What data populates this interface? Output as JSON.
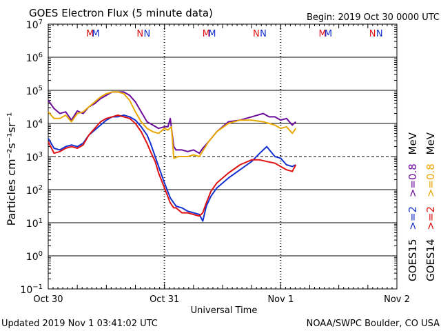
{
  "header": {
    "title": "GOES Electron Flux (5 minute data)",
    "begin": "Begin: 2019 Oct 30 0000 UTC"
  },
  "footer": {
    "updated": "Updated 2019 Nov  1 03:41:02 UTC",
    "credit": "NOAA/SWPC Boulder, CO USA"
  },
  "colors": {
    "goes15_2": "#1030d0",
    "goes14_2": "#e01010",
    "goes15_08": "#6a0a9a",
    "goes14_08": "#e8a800",
    "m_red": "#e01010",
    "m_blue": "#1030d0"
  },
  "chart_data": {
    "type": "line",
    "title": "GOES Electron Flux (5 minute data)",
    "xlabel": "Universal Time",
    "ylabel": "Particles cm⁻²s⁻¹sr⁻¹",
    "y_scale": "log",
    "ylim_exp": [
      -1,
      7
    ],
    "ytick_labels": [
      {
        "exp": 7,
        "label": "10",
        "sup": "7"
      },
      {
        "exp": 6,
        "label": "10",
        "sup": "6"
      },
      {
        "exp": 5,
        "label": "10",
        "sup": "5"
      },
      {
        "exp": 4,
        "label": "10",
        "sup": "4"
      },
      {
        "exp": 3,
        "label": "10",
        "sup": "3"
      },
      {
        "exp": 2,
        "label": "10",
        "sup": "2"
      },
      {
        "exp": 1,
        "label": "10",
        "sup": "1"
      },
      {
        "exp": 0,
        "label": "10",
        "sup": "0"
      },
      {
        "exp": -1,
        "label": "10",
        "sup": "−1"
      }
    ],
    "xlim_days": [
      0,
      3
    ],
    "x_tick_labels": [
      {
        "day": 0,
        "label": "Oct 30"
      },
      {
        "day": 1,
        "label": "Oct 31"
      },
      {
        "day": 2,
        "label": "Nov 1"
      },
      {
        "day": 3,
        "label": "Nov 2"
      }
    ],
    "threshold_exp": 3,
    "gridlines_exp": [
      6,
      5,
      4,
      2,
      1,
      0
    ],
    "day_dividers": [
      1,
      2
    ],
    "markers": [
      {
        "day": 0.36,
        "label": "M",
        "which": "red"
      },
      {
        "day": 0.41,
        "label": "M",
        "which": "blue"
      },
      {
        "day": 0.79,
        "label": "N",
        "which": "red"
      },
      {
        "day": 0.85,
        "label": "N",
        "which": "blue"
      },
      {
        "day": 1.36,
        "label": "M",
        "which": "red"
      },
      {
        "day": 1.41,
        "label": "M",
        "which": "blue"
      },
      {
        "day": 1.79,
        "label": "N",
        "which": "red"
      },
      {
        "day": 1.85,
        "label": "N",
        "which": "blue"
      },
      {
        "day": 2.36,
        "label": "M",
        "which": "red"
      },
      {
        "day": 2.41,
        "label": "M",
        "which": "blue"
      },
      {
        "day": 2.79,
        "label": "N",
        "which": "red"
      },
      {
        "day": 2.85,
        "label": "N",
        "which": "blue"
      }
    ],
    "legend": {
      "goes15": "GOES15",
      "goes14": "GOES14",
      "ge2": ">=2",
      "ge08": ">=0.8",
      "mev": "MeV"
    },
    "series": [
      {
        "name": "GOES15 >=0.8 MeV",
        "color_key": "goes15_08",
        "days": [
          0,
          0.05,
          0.1,
          0.15,
          0.2,
          0.25,
          0.3,
          0.35,
          0.4,
          0.45,
          0.5,
          0.55,
          0.6,
          0.65,
          0.7,
          0.75,
          0.8,
          0.85,
          0.9,
          0.95,
          1.0,
          1.03,
          1.05,
          1.08,
          1.1,
          1.15,
          1.2,
          1.25,
          1.3,
          1.33,
          1.38,
          1.45,
          1.55,
          1.65,
          1.75,
          1.85,
          1.9,
          1.95,
          2.0,
          2.05,
          2.1,
          2.13
        ],
        "log_values": [
          4.7,
          4.45,
          4.3,
          4.35,
          4.1,
          4.38,
          4.3,
          4.5,
          4.6,
          4.75,
          4.85,
          4.95,
          4.95,
          4.95,
          4.85,
          4.65,
          4.35,
          4.05,
          3.95,
          3.85,
          3.9,
          3.9,
          4.15,
          3.3,
          3.2,
          3.2,
          3.15,
          3.2,
          3.1,
          3.25,
          3.45,
          3.75,
          4.05,
          4.1,
          4.2,
          4.3,
          4.2,
          4.2,
          4.1,
          4.15,
          3.95,
          4.05
        ]
      },
      {
        "name": "GOES14 >=0.8 MeV",
        "color_key": "goes14_08",
        "days": [
          0,
          0.05,
          0.1,
          0.15,
          0.2,
          0.25,
          0.3,
          0.35,
          0.4,
          0.45,
          0.5,
          0.55,
          0.6,
          0.65,
          0.7,
          0.75,
          0.8,
          0.85,
          0.9,
          0.95,
          1.0,
          1.03,
          1.06,
          1.08,
          1.12,
          1.2,
          1.25,
          1.3,
          1.38,
          1.45,
          1.55,
          1.65,
          1.75,
          1.85,
          1.9,
          1.95,
          2.0,
          2.05,
          2.1,
          2.13
        ],
        "log_values": [
          4.35,
          4.15,
          4.15,
          4.25,
          4.05,
          4.3,
          4.35,
          4.5,
          4.65,
          4.8,
          4.9,
          4.95,
          4.95,
          4.9,
          4.7,
          4.35,
          4.05,
          3.85,
          3.75,
          3.7,
          3.85,
          3.8,
          3.9,
          2.95,
          3.0,
          3.0,
          3.05,
          3.0,
          3.45,
          3.75,
          4.0,
          4.1,
          4.1,
          4.05,
          4.0,
          3.95,
          3.85,
          3.9,
          3.7,
          3.85
        ]
      },
      {
        "name": "GOES15 >=2 MeV",
        "color_key": "goes15_2",
        "days": [
          0,
          0.05,
          0.1,
          0.15,
          0.2,
          0.25,
          0.3,
          0.35,
          0.4,
          0.45,
          0.5,
          0.55,
          0.6,
          0.65,
          0.7,
          0.75,
          0.8,
          0.85,
          0.88,
          0.92,
          0.95,
          1.0,
          1.05,
          1.08,
          1.1,
          1.15,
          1.2,
          1.25,
          1.3,
          1.33,
          1.36,
          1.4,
          1.45,
          1.55,
          1.65,
          1.75,
          1.82,
          1.88,
          1.95,
          2.0,
          2.05,
          2.1,
          2.13
        ],
        "log_values": [
          3.55,
          3.25,
          3.2,
          3.3,
          3.35,
          3.3,
          3.4,
          3.65,
          3.8,
          3.95,
          4.1,
          4.2,
          4.2,
          4.25,
          4.2,
          4.1,
          3.9,
          3.65,
          3.4,
          3.0,
          2.7,
          2.2,
          1.75,
          1.6,
          1.5,
          1.45,
          1.35,
          1.3,
          1.25,
          1.05,
          1.5,
          1.8,
          2.05,
          2.35,
          2.6,
          2.85,
          3.1,
          3.3,
          3.0,
          2.95,
          2.75,
          2.7,
          2.75
        ]
      },
      {
        "name": "GOES14 >=2 MeV",
        "color_key": "goes14_2",
        "days": [
          0,
          0.05,
          0.1,
          0.15,
          0.2,
          0.25,
          0.3,
          0.35,
          0.4,
          0.45,
          0.5,
          0.55,
          0.6,
          0.65,
          0.7,
          0.75,
          0.8,
          0.85,
          0.88,
          0.92,
          0.95,
          1.0,
          1.05,
          1.08,
          1.1,
          1.15,
          1.2,
          1.25,
          1.3,
          1.33,
          1.36,
          1.4,
          1.45,
          1.55,
          1.65,
          1.75,
          1.82,
          1.88,
          1.95,
          2.0,
          2.05,
          2.1,
          2.13
        ],
        "log_values": [
          3.45,
          3.1,
          3.15,
          3.25,
          3.3,
          3.25,
          3.35,
          3.65,
          3.85,
          4.05,
          4.15,
          4.2,
          4.25,
          4.2,
          4.15,
          4.0,
          3.75,
          3.4,
          3.15,
          2.85,
          2.5,
          2.05,
          1.6,
          1.45,
          1.45,
          1.3,
          1.3,
          1.25,
          1.2,
          1.3,
          1.6,
          1.95,
          2.2,
          2.5,
          2.75,
          2.9,
          2.9,
          2.85,
          2.8,
          2.7,
          2.6,
          2.55,
          2.75
        ]
      }
    ]
  }
}
